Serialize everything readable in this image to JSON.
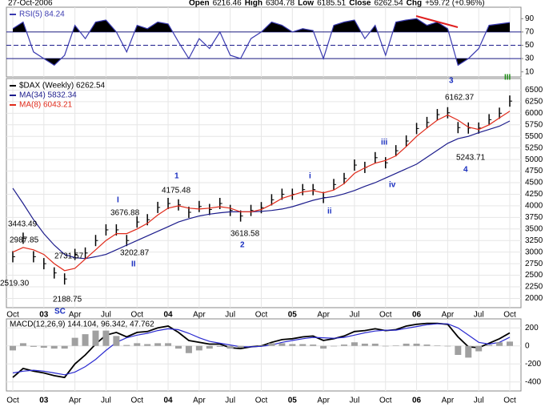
{
  "header": {
    "date": "27-Oct-2006",
    "quote": [
      "Open",
      "6216.46",
      "High",
      "6304.78",
      "Low",
      "6185.51",
      "Close",
      "6262.54",
      "Chg",
      "+59.72 (+0.96%)"
    ]
  },
  "chart_data": [
    {
      "type": "line",
      "categories": [
        "Oct",
        null,
        null,
        "03",
        null,
        null,
        "Apr",
        null,
        null,
        "Jul",
        null,
        null,
        "Oct",
        null,
        null,
        "04",
        null,
        null,
        "Apr",
        null,
        null,
        "Jul",
        null,
        null,
        "Oct",
        null,
        null,
        "05",
        null,
        null,
        "Apr",
        null,
        null,
        "Jul",
        null,
        null,
        "Oct",
        null,
        null,
        "06",
        null,
        null,
        "Apr",
        null,
        null,
        "Jul",
        null,
        null,
        "Oct"
      ],
      "ylim": [
        0,
        100
      ],
      "yticks": [
        90,
        70,
        50,
        30,
        10
      ],
      "levels": [
        30,
        50,
        70
      ],
      "series": [
        {
          "name": "RSI(5) 84.24",
          "color": "#3a3ab0",
          "fill_color": "#000000",
          "style": "line",
          "values": [
            75,
            85,
            40,
            30,
            20,
            35,
            80,
            60,
            85,
            88,
            70,
            40,
            80,
            75,
            85,
            82,
            55,
            30,
            60,
            45,
            70,
            35,
            30,
            60,
            70,
            85,
            80,
            70,
            75,
            72,
            30,
            80,
            85,
            88,
            60,
            80,
            35,
            85,
            88,
            90,
            80,
            85,
            75,
            20,
            30,
            45,
            80,
            82,
            84.24
          ]
        }
      ]
    },
    {
      "type": "line",
      "categories": [
        "Oct",
        null,
        null,
        "03",
        null,
        null,
        "Apr",
        null,
        null,
        "Jul",
        null,
        null,
        "Oct",
        null,
        null,
        "04",
        null,
        null,
        "Apr",
        null,
        null,
        "Jul",
        null,
        null,
        "Oct",
        null,
        null,
        "05",
        null,
        null,
        "Apr",
        null,
        null,
        "Jul",
        null,
        null,
        "Oct",
        null,
        null,
        "06",
        null,
        null,
        "Apr",
        null,
        null,
        "Jul",
        null,
        null,
        "Oct"
      ],
      "ylim": [
        1800,
        6750
      ],
      "yticks": [
        2000,
        2250,
        2500,
        2750,
        3000,
        3250,
        3500,
        3750,
        4000,
        4250,
        4500,
        4750,
        5000,
        5250,
        5500,
        5750,
        6000,
        6250,
        6500
      ],
      "series": [
        {
          "name": "$DAX (Weekly) 6262.54",
          "color": "#000000",
          "style": "bars",
          "values": [
            2900,
            3300,
            2900,
            2750,
            2550,
            2420,
            2950,
            2980,
            3250,
            3480,
            3480,
            3250,
            3650,
            3700,
            3965,
            4050,
            4020,
            3860,
            3985,
            3920,
            4050,
            3900,
            3780,
            3900,
            3960,
            4130,
            4250,
            4250,
            4350,
            4350,
            4180,
            4460,
            4590,
            4880,
            4830,
            5040,
            4930,
            5190,
            5400,
            5670,
            5800,
            5970,
            6010,
            5690,
            5680,
            5680,
            5860,
            6000,
            6262.54
          ]
        },
        {
          "name": "MA(34) 5832.34",
          "color": "#1c1c8c",
          "style": "line",
          "values": [
            4380,
            4050,
            3700,
            3400,
            3150,
            2950,
            2880,
            2860,
            2900,
            2950,
            3050,
            3150,
            3250,
            3350,
            3450,
            3550,
            3650,
            3720,
            3780,
            3820,
            3850,
            3870,
            3870,
            3870,
            3880,
            3900,
            3930,
            3980,
            4050,
            4120,
            4170,
            4200,
            4260,
            4330,
            4420,
            4500,
            4600,
            4700,
            4800,
            4900,
            5050,
            5200,
            5350,
            5450,
            5500,
            5580,
            5650,
            5720,
            5832.34
          ]
        },
        {
          "name": "MA(8) 6043.21",
          "color": "#e02a1a",
          "style": "line",
          "values": [
            3000,
            3100,
            3050,
            2950,
            2750,
            2600,
            2650,
            2850,
            3050,
            3250,
            3400,
            3400,
            3500,
            3620,
            3800,
            3950,
            4000,
            3950,
            3930,
            3950,
            3980,
            3950,
            3870,
            3870,
            3920,
            4030,
            4160,
            4230,
            4300,
            4330,
            4280,
            4340,
            4480,
            4700,
            4820,
            4920,
            4980,
            5080,
            5280,
            5500,
            5680,
            5850,
            5960,
            5850,
            5700,
            5650,
            5750,
            5900,
            6043.21
          ]
        }
      ],
      "annotations": [
        {
          "text": "3443.49",
          "color": "#000000"
        },
        {
          "text": "2987.85",
          "color": "#000000"
        },
        {
          "text": "2519.30",
          "color": "#000000"
        },
        {
          "text": "2731.57",
          "color": "#000000"
        },
        {
          "text": "2188.75",
          "color": "#000000"
        },
        {
          "text": "3676.88",
          "color": "#000000"
        },
        {
          "text": "3202.87",
          "color": "#000000"
        },
        {
          "text": "4175.48",
          "color": "#000000"
        },
        {
          "text": "3618.58",
          "color": "#000000"
        },
        {
          "text": "6162.37",
          "color": "#000000"
        },
        {
          "text": "5243.71",
          "color": "#000000"
        },
        {
          "text": "SC",
          "color": "#1a2fc0"
        },
        {
          "text": "I",
          "color": "#1a2fc0"
        },
        {
          "text": "II",
          "color": "#1a2fc0"
        },
        {
          "text": "1",
          "color": "#1a2fc0"
        },
        {
          "text": "2",
          "color": "#1a2fc0"
        },
        {
          "text": "i",
          "color": "#1a2fc0"
        },
        {
          "text": "ii",
          "color": "#1a2fc0"
        },
        {
          "text": "iii",
          "color": "#1a2fc0"
        },
        {
          "text": "iv",
          "color": "#1a2fc0"
        },
        {
          "text": "3",
          "color": "#1a2fc0"
        },
        {
          "text": "4",
          "color": "#1a2fc0"
        },
        {
          "text": "III",
          "color": "#1a8a10"
        }
      ]
    },
    {
      "type": "line",
      "categories": [
        "Oct",
        null,
        null,
        "03",
        null,
        null,
        "Apr",
        null,
        null,
        "Jul",
        null,
        null,
        "Oct",
        null,
        null,
        "04",
        null,
        null,
        "Apr",
        null,
        null,
        "Jul",
        null,
        null,
        "Oct",
        null,
        null,
        "05",
        null,
        null,
        "Apr",
        null,
        null,
        "Jul",
        null,
        null,
        "Oct",
        null,
        null,
        "06",
        null,
        null,
        "Apr",
        null,
        null,
        "Jul",
        null,
        null,
        "Oct"
      ],
      "ylim": [
        -500,
        300
      ],
      "yticks": [
        200,
        0,
        -200,
        -400
      ],
      "title": "MACD(12,26,9) 144.104, 96.342, 47.762",
      "series": [
        {
          "color": "#000000",
          "style": "line",
          "values": [
            -350,
            -250,
            -280,
            -300,
            -330,
            -350,
            -200,
            -100,
            20,
            120,
            150,
            100,
            150,
            160,
            200,
            220,
            150,
            60,
            40,
            20,
            20,
            -20,
            -30,
            -10,
            0,
            40,
            70,
            80,
            100,
            110,
            60,
            80,
            110,
            160,
            170,
            190,
            170,
            180,
            220,
            240,
            250,
            250,
            240,
            100,
            -10,
            -20,
            30,
            80,
            144.104
          ]
        },
        {
          "color": "#2a2ad0",
          "style": "line",
          "values": [
            -300,
            -280,
            -270,
            -280,
            -300,
            -320,
            -290,
            -230,
            -150,
            -50,
            40,
            90,
            120,
            140,
            170,
            190,
            180,
            140,
            90,
            50,
            30,
            10,
            -10,
            -10,
            -5,
            10,
            40,
            60,
            80,
            95,
            90,
            85,
            95,
            120,
            145,
            165,
            175,
            175,
            195,
            215,
            235,
            245,
            245,
            200,
            120,
            40,
            20,
            40,
            96.342
          ]
        },
        {
          "color": "#a0a0a0",
          "style": "bar",
          "values": [
            -50,
            30,
            -10,
            -20,
            -30,
            -30,
            90,
            130,
            170,
            170,
            110,
            10,
            30,
            20,
            30,
            30,
            -30,
            -80,
            -50,
            -30,
            -10,
            -30,
            -20,
            0,
            5,
            30,
            30,
            20,
            20,
            15,
            -30,
            -5,
            15,
            40,
            25,
            25,
            -5,
            5,
            25,
            25,
            15,
            5,
            -5,
            -100,
            -130,
            -60,
            10,
            40,
            47.762
          ]
        }
      ]
    }
  ]
}
